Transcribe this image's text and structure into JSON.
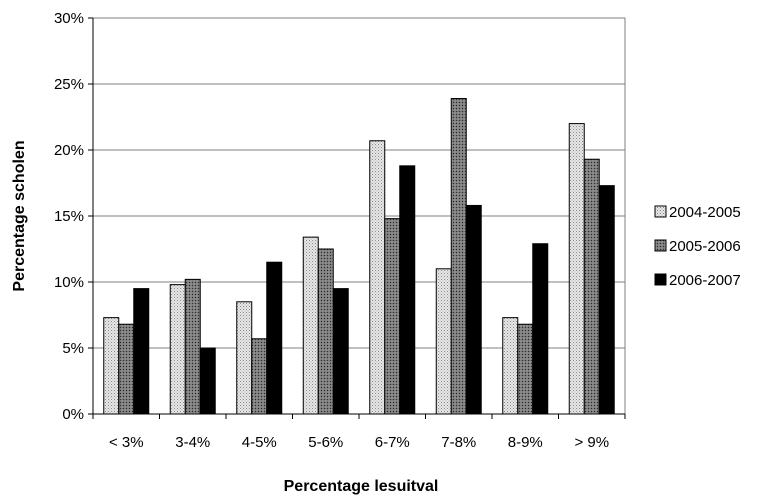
{
  "chart_data": {
    "type": "bar",
    "title": "",
    "xlabel": "Percentage lesuitval",
    "ylabel": "Percentage scholen",
    "categories": [
      "< 3%",
      "3-4%",
      "4-5%",
      "5-6%",
      "6-7%",
      "7-8%",
      "8-9%",
      "> 9%"
    ],
    "series": [
      {
        "name": "2004-2005",
        "values": [
          7.3,
          9.8,
          8.5,
          13.4,
          20.7,
          11.0,
          7.3,
          22.0
        ],
        "pattern": "light-dotted"
      },
      {
        "name": "2005-2006",
        "values": [
          6.8,
          10.2,
          5.7,
          12.5,
          14.8,
          23.9,
          6.8,
          19.3
        ],
        "pattern": "dark-dotted"
      },
      {
        "name": "2006-2007",
        "values": [
          9.5,
          5.0,
          11.5,
          9.5,
          18.8,
          15.8,
          12.9,
          17.3
        ],
        "pattern": "solid-black"
      }
    ],
    "ylim": [
      0,
      30
    ],
    "yticks": [
      0,
      5,
      10,
      15,
      20,
      25,
      30
    ],
    "ytick_labels": [
      "0%",
      "5%",
      "10%",
      "15%",
      "20%",
      "25%",
      "30%"
    ],
    "grid": true,
    "legend_position": "right"
  }
}
